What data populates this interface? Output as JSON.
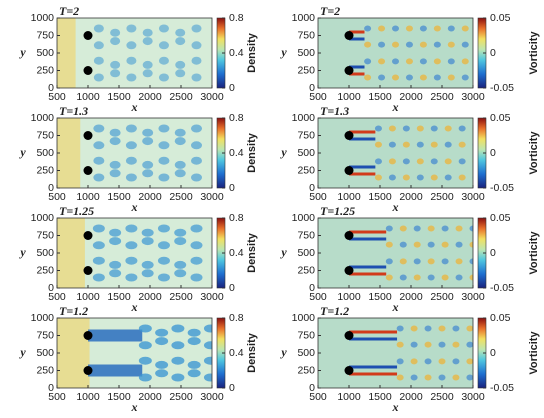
{
  "chart_data": [
    {
      "type": "heatmap",
      "title": "T=2",
      "xlabel": "x",
      "ylabel": "y",
      "colorbar_label": "Density",
      "field": "density",
      "xlim": [
        500,
        3000
      ],
      "xticks": [
        500,
        1000,
        1500,
        2000,
        2500,
        3000
      ],
      "ylim": [
        0,
        1000
      ],
      "yticks": [
        0,
        250,
        500,
        750,
        1000
      ],
      "clim": [
        0,
        0.8
      ],
      "cticks": [
        0,
        0.4,
        0.8
      ],
      "cylinders": {
        "x": [
          1000,
          1000
        ],
        "y": [
          750,
          250
        ]
      }
    },
    {
      "type": "heatmap",
      "title": "T=2",
      "xlabel": "x",
      "ylabel": "y",
      "colorbar_label": "Vorticity",
      "field": "vorticity",
      "xlim": [
        500,
        3000
      ],
      "xticks": [
        500,
        1000,
        1500,
        2000,
        2500,
        3000
      ],
      "ylim": [
        0,
        1000
      ],
      "yticks": [
        0,
        250,
        500,
        750,
        1000
      ],
      "clim": [
        -0.05,
        0.05
      ],
      "cticks": [
        -0.05,
        0,
        0.05
      ],
      "cylinders": {
        "x": [
          1000,
          1000
        ],
        "y": [
          750,
          250
        ]
      }
    },
    {
      "type": "heatmap",
      "title": "T=1.3",
      "xlabel": "x",
      "ylabel": "y",
      "colorbar_label": "Density",
      "field": "density",
      "xlim": [
        500,
        3000
      ],
      "xticks": [
        500,
        1000,
        1500,
        2000,
        2500,
        3000
      ],
      "ylim": [
        0,
        1000
      ],
      "yticks": [
        0,
        250,
        500,
        750,
        1000
      ],
      "clim": [
        0,
        0.8
      ],
      "cticks": [
        0,
        0.4,
        0.8
      ],
      "cylinders": {
        "x": [
          1000,
          1000
        ],
        "y": [
          750,
          250
        ]
      }
    },
    {
      "type": "heatmap",
      "title": "T=1.3",
      "xlabel": "x",
      "ylabel": "y",
      "colorbar_label": "Vorticity",
      "field": "vorticity",
      "xlim": [
        500,
        3000
      ],
      "xticks": [
        500,
        1000,
        1500,
        2000,
        2500,
        3000
      ],
      "ylim": [
        0,
        1000
      ],
      "yticks": [
        0,
        250,
        500,
        750,
        1000
      ],
      "clim": [
        -0.05,
        0.05
      ],
      "cticks": [
        -0.05,
        0,
        0.05
      ],
      "cylinders": {
        "x": [
          1000,
          1000
        ],
        "y": [
          750,
          250
        ]
      }
    },
    {
      "type": "heatmap",
      "title": "T=1.25",
      "xlabel": "x",
      "ylabel": "y",
      "colorbar_label": "Density",
      "field": "density",
      "xlim": [
        500,
        3000
      ],
      "xticks": [
        500,
        1000,
        1500,
        2000,
        2500,
        3000
      ],
      "ylim": [
        0,
        1000
      ],
      "yticks": [
        0,
        250,
        500,
        750,
        1000
      ],
      "clim": [
        0,
        0.8
      ],
      "cticks": [
        0,
        0.4,
        0.8
      ],
      "cylinders": {
        "x": [
          1000,
          1000
        ],
        "y": [
          750,
          250
        ]
      }
    },
    {
      "type": "heatmap",
      "title": "T=1.25",
      "xlabel": "x",
      "ylabel": "y",
      "colorbar_label": "Vorticity",
      "field": "vorticity",
      "xlim": [
        500,
        3000
      ],
      "xticks": [
        500,
        1000,
        1500,
        2000,
        2500,
        3000
      ],
      "ylim": [
        0,
        1000
      ],
      "yticks": [
        0,
        250,
        500,
        750,
        1000
      ],
      "clim": [
        -0.05,
        0.05
      ],
      "cticks": [
        -0.05,
        0,
        0.05
      ],
      "cylinders": {
        "x": [
          1000,
          1000
        ],
        "y": [
          750,
          250
        ]
      }
    },
    {
      "type": "heatmap",
      "title": "T=1.2",
      "xlabel": "x",
      "ylabel": "y",
      "colorbar_label": "Density",
      "field": "density",
      "xlim": [
        500,
        3000
      ],
      "xticks": [
        500,
        1000,
        1500,
        2000,
        2500,
        3000
      ],
      "ylim": [
        0,
        1000
      ],
      "yticks": [
        0,
        250,
        500,
        750,
        1000
      ],
      "clim": [
        0,
        0.8
      ],
      "cticks": [
        0,
        0.4,
        0.8
      ],
      "cylinders": {
        "x": [
          1000,
          1000
        ],
        "y": [
          750,
          250
        ]
      }
    },
    {
      "type": "heatmap",
      "title": "T=1.2",
      "xlabel": "x",
      "ylabel": "y",
      "colorbar_label": "Vorticity",
      "field": "vorticity",
      "xlim": [
        500,
        3000
      ],
      "xticks": [
        500,
        1000,
        1500,
        2000,
        2500,
        3000
      ],
      "ylim": [
        0,
        1000
      ],
      "yticks": [
        0,
        250,
        500,
        750,
        1000
      ],
      "clim": [
        -0.05,
        0.05
      ],
      "cticks": [
        -0.05,
        0,
        0.05
      ],
      "cylinders": {
        "x": [
          1000,
          1000
        ],
        "y": [
          750,
          250
        ]
      }
    }
  ]
}
